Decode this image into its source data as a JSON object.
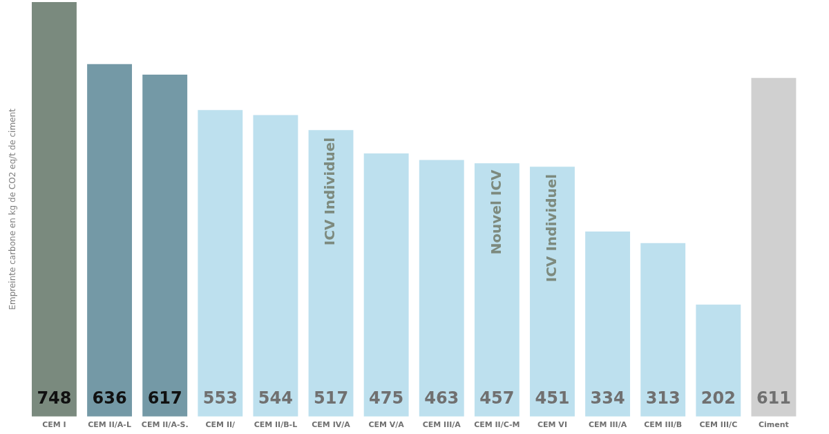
{
  "chart_data": {
    "type": "bar",
    "ylabel": "Empreinte carbone en kg de CO2 eq/t de ciment",
    "categories": [
      "CEM I",
      "CEM II/A-L",
      "CEM II/A-S.",
      "CEM II/",
      "CEM II/B-L",
      "CEM IV/A",
      "CEM V/A",
      "CEM III/A",
      "CEM II/C-M",
      "CEM VI",
      "CEM III/A",
      "CEM III/B",
      "CEM III/C",
      "Ciment"
    ],
    "values": [
      748,
      636,
      617,
      553,
      544,
      517,
      475,
      463,
      457,
      451,
      334,
      313,
      202,
      611
    ],
    "colors": [
      "#7a8a7e",
      "#7499a6",
      "#7499a6",
      "#bde0ee",
      "#bde0ee",
      "#bde0ee",
      "#bde0ee",
      "#bde0ee",
      "#bde0ee",
      "#bde0ee",
      "#bde0ee",
      "#bde0ee",
      "#bde0ee",
      "#d0d0d0"
    ],
    "ylim": [
      0,
      748
    ],
    "data_labels": true,
    "grid": false,
    "legend": false,
    "annotations": [
      "ICV Individuel",
      "Nouvel ICV",
      "ICV Individuel"
    ]
  }
}
